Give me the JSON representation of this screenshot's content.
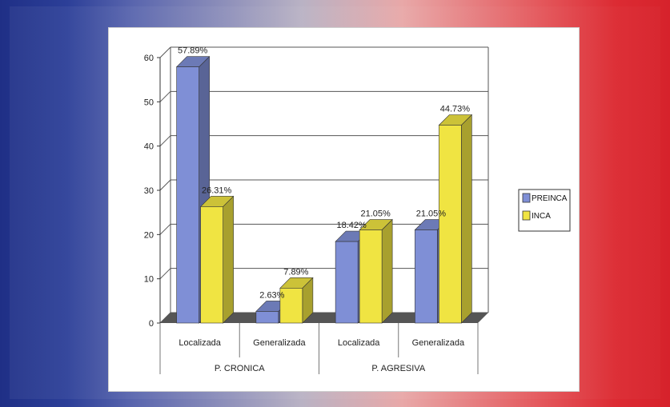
{
  "chart_data": {
    "type": "bar",
    "title": "",
    "ylabel": "",
    "xlabel": "",
    "ylim": [
      0,
      60
    ],
    "yticks": [
      0,
      10,
      20,
      30,
      40,
      50,
      60
    ],
    "grid": true,
    "legend_position": "right",
    "groups": [
      {
        "label": "P. CRONICA",
        "categories": [
          "Localizada",
          "Generalizada"
        ]
      },
      {
        "label": "P. AGRESIVA",
        "categories": [
          "Localizada",
          "Generalizada"
        ]
      }
    ],
    "categories": [
      "Localizada",
      "Generalizada",
      "Localizada",
      "Generalizada"
    ],
    "series": [
      {
        "name": "PREINCA",
        "color": "#7f8fd6",
        "values": [
          57.89,
          2.63,
          18.42,
          21.05
        ],
        "labels": [
          "57.89%",
          "2.63%",
          "18.42%",
          "21.05%"
        ]
      },
      {
        "name": "INCA",
        "color": "#f0e442",
        "values": [
          26.31,
          7.89,
          21.05,
          44.73
        ],
        "labels": [
          "26.31%",
          "7.89%",
          "21.05%",
          "44.73%"
        ]
      }
    ]
  }
}
